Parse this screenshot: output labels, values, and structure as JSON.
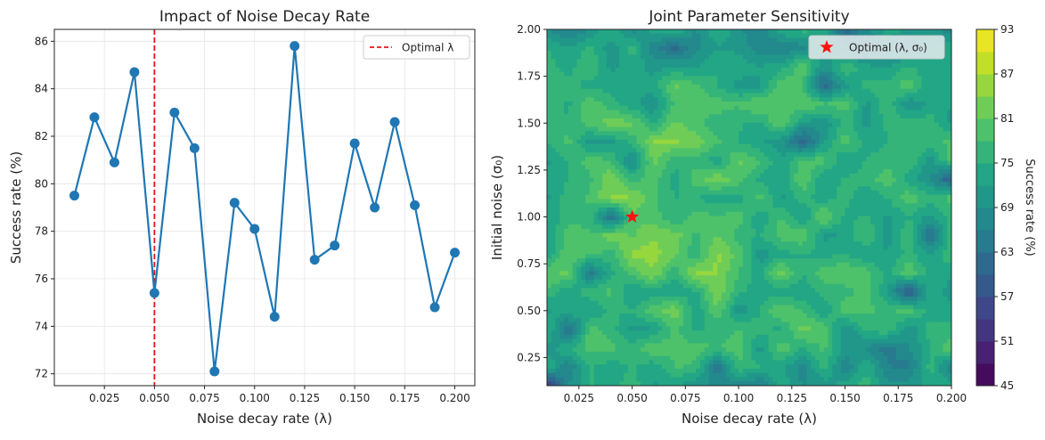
{
  "chart_data": [
    {
      "type": "line",
      "title": "Impact of Noise Decay Rate",
      "xlabel": "Noise decay rate (λ)",
      "ylabel": "Success rate (%)",
      "xlim": [
        0.0,
        0.21
      ],
      "ylim": [
        71.5,
        86.5
      ],
      "xticks": [
        "0.025",
        "0.050",
        "0.075",
        "0.100",
        "0.125",
        "0.150",
        "0.175",
        "0.200"
      ],
      "yticks": [
        "72",
        "74",
        "76",
        "78",
        "80",
        "82",
        "84",
        "86"
      ],
      "grid": true,
      "legend_position": "top-right",
      "x": [
        0.01,
        0.02,
        0.03,
        0.04,
        0.05,
        0.06,
        0.07,
        0.08,
        0.09,
        0.1,
        0.11,
        0.12,
        0.13,
        0.14,
        0.15,
        0.16,
        0.17,
        0.18,
        0.19,
        0.2
      ],
      "y": [
        79.5,
        82.8,
        80.9,
        84.7,
        75.4,
        83.0,
        81.5,
        72.1,
        79.2,
        78.1,
        74.4,
        85.8,
        76.8,
        77.4,
        81.7,
        79.0,
        82.6,
        79.1,
        74.8,
        77.1
      ],
      "line_color": "#1f77b4",
      "reference_line": {
        "x": 0.05,
        "label": "Optimal λ",
        "color": "#e4161b"
      }
    },
    {
      "type": "heatmap",
      "title": "Joint Parameter Sensitivity",
      "xlabel": "Noise decay rate (λ)",
      "ylabel": "Initial noise (σ₀)",
      "xlim": [
        0.01,
        0.2
      ],
      "ylim": [
        0.1,
        2.0
      ],
      "xticks": [
        "0.025",
        "0.050",
        "0.075",
        "0.100",
        "0.125",
        "0.150",
        "0.175",
        "0.200"
      ],
      "yticks": [
        "0.25",
        "0.50",
        "0.75",
        "1.00",
        "1.25",
        "1.50",
        "1.75",
        "2.00"
      ],
      "colorbar_label": "Success rate (%)",
      "colorbar_range": [
        45,
        93
      ],
      "colorbar_ticks": [
        "45",
        "51",
        "57",
        "63",
        "69",
        "75",
        "81",
        "87",
        "93"
      ],
      "colormap": "viridis",
      "legend_position": "top-right",
      "optimal_point": {
        "x": 0.05,
        "y": 1.0,
        "label": "Optimal (λ, σ₀)",
        "color": "#ff1111"
      },
      "value_range_observed": [
        45,
        84
      ]
    }
  ]
}
